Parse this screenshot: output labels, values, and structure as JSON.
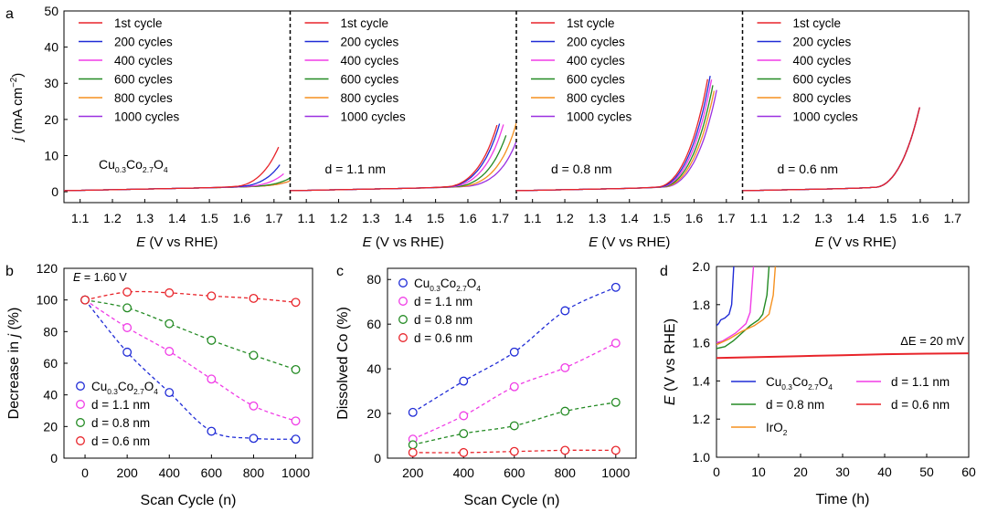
{
  "chart_data": [
    {
      "panel": "a",
      "type": "line",
      "ylabel": "j (mA cm⁻²)",
      "ylim": [
        -3,
        50
      ],
      "yticks": [
        0,
        10,
        20,
        30,
        40,
        50
      ],
      "xlim": [
        1.05,
        1.75
      ],
      "xticks": [
        "1.1",
        "1.2",
        "1.3",
        "1.4",
        "1.5",
        "1.6",
        "1.7"
      ],
      "legend": [
        "1st cycle",
        "200 cycles",
        "400 cycles",
        "600 cycles",
        "800 cycles",
        "1000 cycles"
      ],
      "colors": [
        "#e8242a",
        "#1f2bd6",
        "#f03ce6",
        "#238a23",
        "#f5911f",
        "#9b30e0"
      ],
      "subplots": [
        {
          "xlabel": "E (V vs RHE)",
          "label": "Cu0.3Co2.7O4",
          "onset": [
            1.585,
            1.605,
            1.63,
            1.66,
            1.675,
            1.675
          ],
          "kval": [
            175,
            105,
            56,
            28,
            16,
            14
          ],
          "endx": [
            1.715,
            1.72,
            1.73,
            1.75,
            1.75,
            1.75
          ]
        },
        {
          "xlabel": "E (V vs RHE)",
          "label": "d = 1.1 nm",
          "onset": [
            1.54,
            1.545,
            1.555,
            1.57,
            1.585,
            1.6
          ],
          "kval": [
            195,
            185,
            170,
            150,
            125,
            108
          ],
          "endx": [
            1.69,
            1.7,
            1.71,
            1.72,
            1.75,
            1.75
          ]
        },
        {
          "xlabel": "E (V vs RHE)",
          "label": "d = 0.8 nm",
          "onset": [
            1.49,
            1.495,
            1.5,
            1.505,
            1.51,
            1.515
          ],
          "kval": [
            420,
            410,
            400,
            380,
            360,
            340
          ],
          "endx": [
            1.645,
            1.65,
            1.655,
            1.66,
            1.665,
            1.67
          ]
        },
        {
          "xlabel": "E (V vs RHE)",
          "label": "d = 0.6 nm",
          "onset": [
            1.465,
            1.465,
            1.465,
            1.465,
            1.465,
            1.465
          ],
          "kval": [
            430,
            430,
            430,
            430,
            430,
            430
          ],
          "endx": [
            1.6,
            1.6,
            1.6,
            1.6,
            1.6,
            1.6
          ]
        }
      ]
    },
    {
      "panel": "b",
      "type": "scatter",
      "xlabel": "Scan Cycle (n)",
      "ylabel": "Decrease in j (%)",
      "xlim": [
        -100,
        1080
      ],
      "ylim": [
        0,
        120
      ],
      "xticks": [
        0,
        200,
        400,
        600,
        800,
        1000
      ],
      "yticks": [
        0,
        20,
        40,
        60,
        80,
        100,
        120
      ],
      "annotation": "E = 1.60 V",
      "x": [
        0,
        200,
        400,
        600,
        800,
        1000
      ],
      "series": [
        {
          "name": "Cu0.3Co2.7O4",
          "color": "#1f2bd6",
          "values": [
            100,
            67,
            41.5,
            17,
            12.5,
            12
          ]
        },
        {
          "name": "d = 1.1 nm",
          "color": "#f03ce6",
          "values": [
            100,
            82.5,
            67.5,
            50,
            33,
            23.5
          ]
        },
        {
          "name": "d = 0.8 nm",
          "color": "#238a23",
          "values": [
            100,
            95,
            85,
            74.5,
            65,
            56
          ]
        },
        {
          "name": "d = 0.6 nm",
          "color": "#e8242a",
          "values": [
            100,
            105,
            104.5,
            102.5,
            101,
            98.5
          ]
        }
      ]
    },
    {
      "panel": "c",
      "type": "scatter",
      "xlabel": "Scan Cycle (n)",
      "ylabel": "Dissolved Co (%)",
      "xlim": [
        100,
        1080
      ],
      "ylim": [
        0,
        85
      ],
      "xticks": [
        200,
        400,
        600,
        800,
        1000
      ],
      "yticks": [
        0,
        20,
        40,
        60,
        80
      ],
      "x": [
        200,
        400,
        600,
        800,
        1000
      ],
      "series": [
        {
          "name": "Cu0.3Co2.7O4",
          "color": "#1f2bd6",
          "values": [
            20.5,
            34.5,
            47.5,
            66,
            76.5
          ]
        },
        {
          "name": "d = 1.1 nm",
          "color": "#f03ce6",
          "values": [
            8.5,
            19,
            32,
            40.5,
            51.5
          ]
        },
        {
          "name": "d = 0.8 nm",
          "color": "#238a23",
          "values": [
            6,
            11,
            14.5,
            21,
            25
          ]
        },
        {
          "name": "d = 0.6 nm",
          "color": "#e8242a",
          "values": [
            2.5,
            2.5,
            3,
            3.5,
            3.5
          ]
        }
      ]
    },
    {
      "panel": "d",
      "type": "line",
      "xlabel": "Time (h)",
      "ylabel": "E (V vs RHE)",
      "xlim": [
        0,
        60
      ],
      "ylim": [
        1.0,
        2.0
      ],
      "xticks": [
        0,
        10,
        20,
        30,
        40,
        50,
        60
      ],
      "yticks": [
        "1.0",
        "1.2",
        "1.4",
        "1.6",
        "1.8",
        "2.0"
      ],
      "annotation": "ΔE = 20 mV",
      "series": [
        {
          "name": "Cu0.3Co2.7O4",
          "color": "#1f2bd6",
          "points": [
            [
              0,
              1.69
            ],
            [
              0.5,
              1.7
            ],
            [
              1,
              1.72
            ],
            [
              2,
              1.73
            ],
            [
              3,
              1.75
            ],
            [
              3.6,
              1.8
            ],
            [
              4.1,
              2.0
            ]
          ]
        },
        {
          "name": "d = 1.1 nm",
          "color": "#f03ce6",
          "points": [
            [
              0,
              1.6
            ],
            [
              1.5,
              1.61
            ],
            [
              3,
              1.63
            ],
            [
              4.5,
              1.65
            ],
            [
              5.5,
              1.67
            ],
            [
              7,
              1.7
            ],
            [
              8,
              1.76
            ],
            [
              8.8,
              2.0
            ]
          ]
        },
        {
          "name": "d = 0.8 nm",
          "color": "#238a23",
          "points": [
            [
              0,
              1.57
            ],
            [
              2,
              1.58
            ],
            [
              4,
              1.61
            ],
            [
              6,
              1.65
            ],
            [
              8,
              1.69
            ],
            [
              10,
              1.72
            ],
            [
              11,
              1.75
            ],
            [
              12,
              1.85
            ],
            [
              12.5,
              2.0
            ]
          ]
        },
        {
          "name": "IrO2",
          "color": "#f5911f",
          "points": [
            [
              0,
              1.59
            ],
            [
              3,
              1.62
            ],
            [
              6,
              1.66
            ],
            [
              9,
              1.69
            ],
            [
              11,
              1.72
            ],
            [
              12.5,
              1.75
            ],
            [
              13.5,
              1.85
            ],
            [
              14,
              2.0
            ]
          ]
        },
        {
          "name": "d = 0.6 nm",
          "color": "#e8242a",
          "points": [
            [
              0,
              1.52
            ],
            [
              10,
              1.525
            ],
            [
              20,
              1.53
            ],
            [
              30,
              1.535
            ],
            [
              40,
              1.54
            ],
            [
              50,
              1.543
            ],
            [
              60,
              1.545
            ]
          ]
        }
      ]
    }
  ],
  "labels": {
    "a": "a",
    "b": "b",
    "c": "c",
    "d": "d",
    "j_italic": "j",
    "E_italic": "E",
    "cu_prefix": "Cu",
    "cu_sub1": "0.3",
    "cu_mid": "Co",
    "cu_sub2": "2.7",
    "cu_suffix": "O",
    "cu_sub3": "4",
    "iro2_main": "IrO",
    "iro2_sub": "2",
    "d_11": "d = 1.1 nm",
    "d_08": "d = 0.8 nm",
    "d_06": "d = 0.6 nm",
    "eq_160": "= 1.60 V",
    "deltaE": "ΔE = 20 mV",
    "xlabel_a_rest": " (V vs RHE)",
    "ylabel_a_rest": " (mA cm",
    "ylabel_a_sup": "−2",
    "ylabel_a_close": ")",
    "ylabel_b_prefix": "Decrease in ",
    "ylabel_b_suffix": " (%)",
    "ylabel_c": "Dissolved Co (%)",
    "xlabel_bc": "Scan Cycle (n)",
    "xlabel_d": "Time (h)",
    "ylabel_d_rest": " (V vs RHE)"
  }
}
